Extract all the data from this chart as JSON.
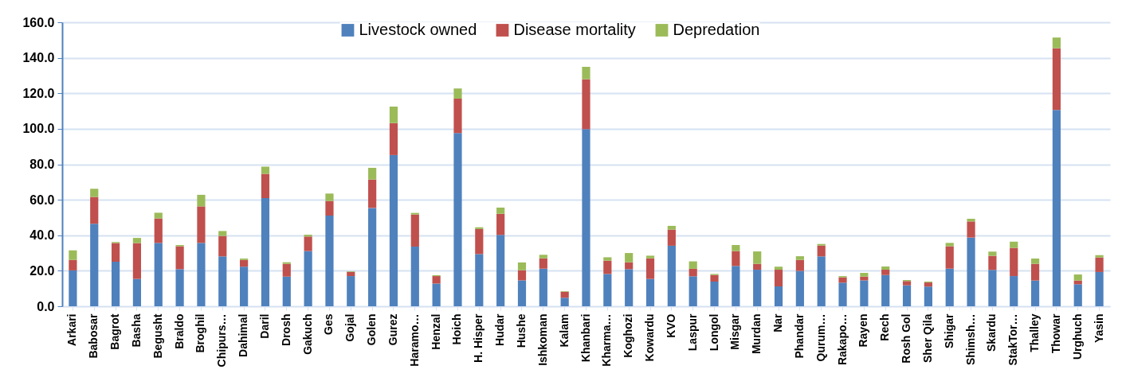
{
  "chart_data": {
    "type": "bar",
    "stacked": true,
    "categories": [
      "Arkari",
      "Babosar",
      "Bagrot",
      "Basha",
      "Begusht",
      "Braldo",
      "Broghil",
      "Chipurs…",
      "Dahimal",
      "Daril",
      "Drosh",
      "Gakuch",
      "Ges",
      "Gojal",
      "Golen",
      "Gurez",
      "Haramo…",
      "Henzal",
      "Hoich",
      "H. Hisper",
      "Hudar",
      "Hushe",
      "Ishkoman",
      "Kalam",
      "Khanbari",
      "Kharma…",
      "Koghozi",
      "Kowardu",
      "KVO",
      "Laspur",
      "Longol",
      "Misgar",
      "Murdan",
      "Nar",
      "Phandar",
      "Qurum…",
      "Rakapo…",
      "Rayen",
      "Rech",
      "Rosh Gol",
      "Sher Qila",
      "Shigar",
      "Shimsh…",
      "Skardu",
      "StakTor…",
      "Thalley",
      "Thowar",
      "Urghuch",
      "Yasin"
    ],
    "series": [
      {
        "name": "Livestock owned",
        "color": "#4f81bd",
        "values": [
          20.2,
          46.5,
          25.1,
          15.4,
          35.7,
          20.9,
          35.7,
          28.1,
          22.3,
          61.0,
          16.7,
          31.1,
          51.1,
          17.0,
          55.4,
          85.2,
          33.6,
          12.8,
          97.6,
          29.4,
          40.2,
          14.6,
          21.2,
          4.8,
          99.8,
          18.2,
          20.9,
          15.4,
          34.1,
          16.9,
          13.9,
          22.7,
          20.6,
          11.2,
          19.9,
          28.1,
          13.3,
          14.6,
          17.6,
          11.8,
          11.1,
          21.2,
          38.7,
          20.5,
          17.0,
          14.5,
          110.6,
          12.4,
          19.3
        ]
      },
      {
        "name": "Disease mortality",
        "color": "#c0504d",
        "values": [
          5.9,
          15.1,
          10.5,
          20.2,
          13.8,
          12.9,
          20.6,
          11.5,
          3.8,
          13.6,
          7.2,
          8.2,
          8.2,
          2.4,
          16.0,
          18.0,
          18.1,
          4.2,
          19.4,
          14.1,
          11.9,
          5.7,
          5.8,
          3.4,
          28.1,
          7.5,
          3.9,
          11.6,
          9.1,
          4.2,
          3.7,
          8.4,
          3.3,
          9.4,
          6.2,
          6.1,
          3.0,
          2.1,
          3.0,
          2.4,
          2.3,
          12.6,
          9.1,
          7.9,
          15.9,
          9.4,
          34.8,
          2.1,
          8.2
        ]
      },
      {
        "name": "Depredation",
        "color": "#9bbb59",
        "values": [
          5.4,
          4.6,
          0.6,
          2.9,
          3.2,
          0.7,
          6.5,
          2.8,
          0.8,
          4.0,
          0.9,
          1.0,
          4.2,
          0.3,
          6.6,
          9.3,
          0.9,
          0.5,
          5.7,
          1.0,
          3.5,
          4.4,
          2.0,
          0.3,
          7.0,
          1.9,
          5.2,
          1.5,
          2.1,
          4.2,
          0.6,
          3.4,
          7.0,
          1.7,
          2.1,
          0.9,
          0.7,
          2.1,
          1.8,
          0.6,
          0.5,
          1.9,
          1.5,
          2.4,
          3.5,
          3.0,
          6.0,
          3.4,
          1.3
        ]
      }
    ],
    "ylim": [
      0,
      160
    ],
    "yticks": [
      {
        "value": 0,
        "label": "0.0"
      },
      {
        "value": 20,
        "label": "20.0"
      },
      {
        "value": 40,
        "label": "40.0"
      },
      {
        "value": 60,
        "label": "60.0"
      },
      {
        "value": 80,
        "label": "80.0"
      },
      {
        "value": 100,
        "label": "100.0"
      },
      {
        "value": 120,
        "label": "120.0"
      },
      {
        "value": 140,
        "label": "140.0"
      },
      {
        "value": 160,
        "label": "160.0"
      }
    ],
    "grid": "y",
    "legend": "top"
  }
}
